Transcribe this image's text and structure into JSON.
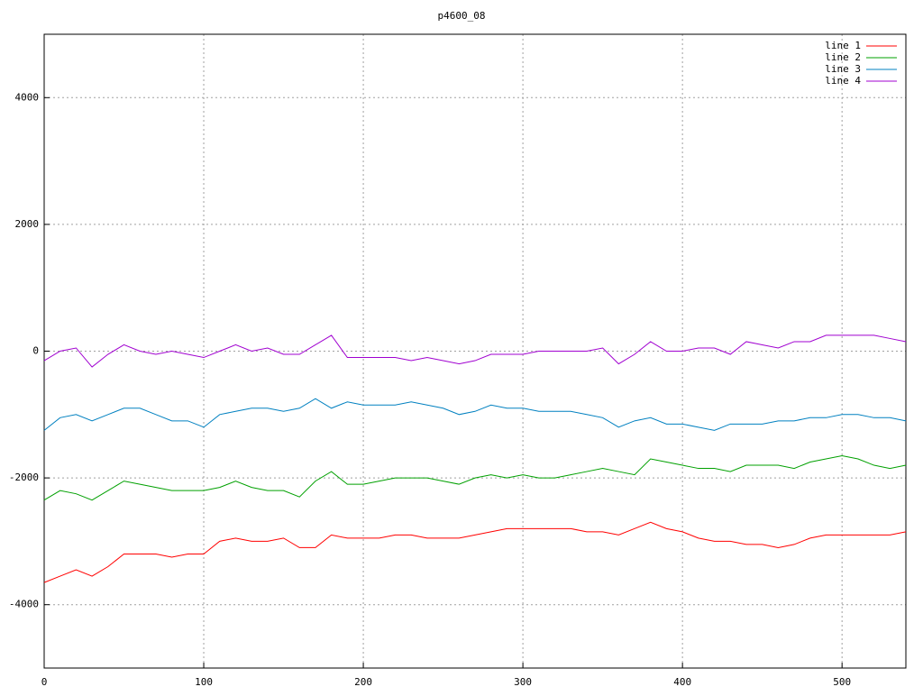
{
  "chart_data": {
    "type": "line",
    "title": "p4600_08",
    "x": [
      0,
      10,
      20,
      30,
      40,
      50,
      60,
      70,
      80,
      90,
      100,
      110,
      120,
      130,
      140,
      150,
      160,
      170,
      180,
      190,
      200,
      210,
      220,
      230,
      240,
      250,
      260,
      270,
      280,
      290,
      300,
      310,
      320,
      330,
      340,
      350,
      360,
      370,
      380,
      390,
      400,
      410,
      420,
      430,
      440,
      450,
      460,
      470,
      480,
      490,
      500,
      510,
      520,
      530,
      540
    ],
    "series": [
      {
        "name": "line 1",
        "color": "#ff0000",
        "values": [
          -3650,
          -3550,
          -3450,
          -3550,
          -3400,
          -3200,
          -3200,
          -3200,
          -3250,
          -3200,
          -3200,
          -3000,
          -2950,
          -3000,
          -3000,
          -2950,
          -3100,
          -3100,
          -2900,
          -2950,
          -2950,
          -2950,
          -2900,
          -2900,
          -2950,
          -2950,
          -2950,
          -2900,
          -2850,
          -2800,
          -2800,
          -2800,
          -2800,
          -2800,
          -2850,
          -2850,
          -2900,
          -2800,
          -2700,
          -2800,
          -2850,
          -2950,
          -3000,
          -3000,
          -3050,
          -3050,
          -3100,
          -3050,
          -2950,
          -2900,
          -2900,
          -2900,
          -2900,
          -2900,
          -2850
        ]
      },
      {
        "name": "line 2",
        "color": "#00a000",
        "values": [
          -2350,
          -2200,
          -2250,
          -2350,
          -2200,
          -2050,
          -2100,
          -2150,
          -2200,
          -2200,
          -2200,
          -2150,
          -2050,
          -2150,
          -2200,
          -2200,
          -2300,
          -2050,
          -1900,
          -2100,
          -2100,
          -2050,
          -2000,
          -2000,
          -2000,
          -2050,
          -2100,
          -2000,
          -1950,
          -2000,
          -1950,
          -2000,
          -2000,
          -1950,
          -1900,
          -1850,
          -1900,
          -1950,
          -1700,
          -1750,
          -1800,
          -1850,
          -1850,
          -1900,
          -1800,
          -1800,
          -1800,
          -1850,
          -1750,
          -1700,
          -1650,
          -1700,
          -1800,
          -1850,
          -1800
        ]
      },
      {
        "name": "line 3",
        "color": "#0080c0",
        "values": [
          -1250,
          -1050,
          -1000,
          -1100,
          -1000,
          -900,
          -900,
          -1000,
          -1100,
          -1100,
          -1200,
          -1000,
          -950,
          -900,
          -900,
          -950,
          -900,
          -750,
          -900,
          -800,
          -850,
          -850,
          -850,
          -800,
          -850,
          -900,
          -1000,
          -950,
          -850,
          -900,
          -900,
          -950,
          -950,
          -950,
          -1000,
          -1050,
          -1200,
          -1100,
          -1050,
          -1150,
          -1150,
          -1200,
          -1250,
          -1150,
          -1150,
          -1150,
          -1100,
          -1100,
          -1050,
          -1050,
          -1000,
          -1000,
          -1050,
          -1050,
          -1100
        ]
      },
      {
        "name": "line 4",
        "color": "#a000d0",
        "values": [
          -150,
          0,
          50,
          -250,
          -50,
          100,
          0,
          -50,
          0,
          -50,
          -100,
          0,
          100,
          0,
          50,
          -50,
          -50,
          100,
          250,
          -100,
          -100,
          -100,
          -100,
          -150,
          -100,
          -150,
          -200,
          -150,
          -50,
          -50,
          -50,
          0,
          0,
          0,
          0,
          50,
          -200,
          -50,
          150,
          0,
          0,
          50,
          50,
          -50,
          150,
          100,
          50,
          150,
          150,
          250,
          250,
          250,
          250,
          200,
          150
        ]
      }
    ],
    "xlim": [
      0,
      540
    ],
    "ylim": [
      -5000,
      5000
    ],
    "xticks": [
      0,
      100,
      200,
      300,
      400,
      500
    ],
    "yticks": [
      -4000,
      -2000,
      0,
      2000,
      4000
    ],
    "grid": true,
    "legend": "top-right"
  }
}
